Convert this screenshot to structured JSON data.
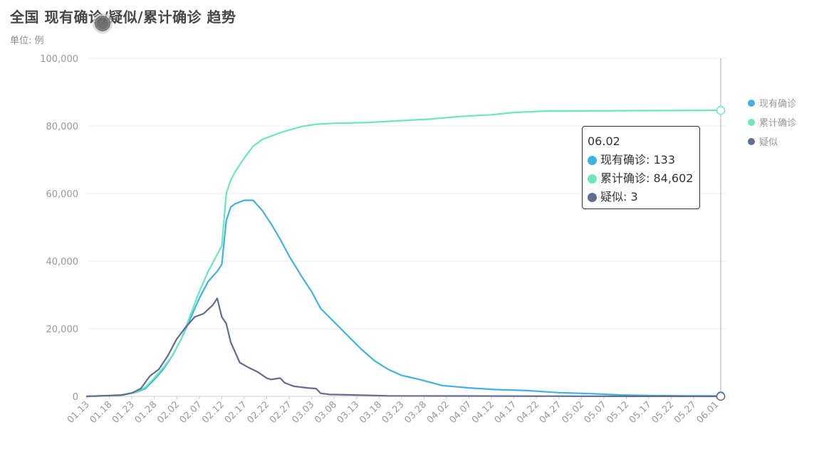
{
  "title": "全国 现有确诊/疑似/累计确诊 趋势",
  "subtitle": "单位: 例",
  "colors": {
    "current": "#3fb1e3",
    "cumulative": "#6be6c1",
    "suspected": "#626c91",
    "grid": "#eeeeee",
    "axis": "#999999"
  },
  "tooltip": {
    "date": "06.02",
    "rows": [
      {
        "label": "现有确诊: 133",
        "color": "#3fb1e3"
      },
      {
        "label": "累计确诊: 84,602",
        "color": "#6be6c1"
      },
      {
        "label": "疑似: 3",
        "color": "#626c91"
      }
    ]
  },
  "chart_data": {
    "type": "line",
    "title": "全国 现有确诊/疑似/累计确诊 趋势",
    "subtitle": "单位: 例",
    "categories": [
      "01.13",
      "01.18",
      "01.23",
      "01.28",
      "02.02",
      "02.07",
      "02.12",
      "02.17",
      "02.22",
      "02.27",
      "03.03",
      "03.08",
      "03.13",
      "03.18",
      "03.23",
      "03.28",
      "04.02",
      "04.07",
      "04.12",
      "04.17",
      "04.22",
      "04.27",
      "05.02",
      "05.07",
      "05.12",
      "05.17",
      "05.22",
      "05.27",
      "06.01"
    ],
    "x_start": "01.13",
    "x_end": "06.02",
    "ylim": [
      0,
      100000
    ],
    "yticks": [
      0,
      20000,
      40000,
      60000,
      80000,
      100000
    ],
    "ytick_labels": [
      "0",
      "20,000",
      "40,000",
      "60,000",
      "80,000",
      "100,000"
    ],
    "grid": true,
    "legend": "right",
    "series": [
      {
        "name": "现有确诊",
        "color": "#3fb1e3",
        "points": [
          [
            "01.13",
            0
          ],
          [
            "01.20",
            250
          ],
          [
            "01.24",
            1200
          ],
          [
            "01.26",
            2300
          ],
          [
            "01.28",
            5000
          ],
          [
            "01.30",
            8000
          ],
          [
            "02.01",
            12000
          ],
          [
            "02.03",
            17000
          ],
          [
            "02.05",
            23000
          ],
          [
            "02.07",
            29000
          ],
          [
            "02.09",
            34000
          ],
          [
            "02.11",
            37000
          ],
          [
            "02.12",
            39000
          ],
          [
            "02.13",
            52000
          ],
          [
            "02.14",
            56000
          ],
          [
            "02.15",
            57000
          ],
          [
            "02.17",
            58000
          ],
          [
            "02.19",
            58000
          ],
          [
            "02.21",
            55000
          ],
          [
            "02.23",
            51000
          ],
          [
            "02.25",
            46500
          ],
          [
            "02.27",
            41500
          ],
          [
            "03.01",
            35000
          ],
          [
            "03.03",
            31000
          ],
          [
            "03.05",
            26000
          ],
          [
            "03.08",
            22000
          ],
          [
            "03.11",
            18000
          ],
          [
            "03.14",
            14000
          ],
          [
            "03.17",
            10500
          ],
          [
            "03.20",
            8000
          ],
          [
            "03.23",
            6200
          ],
          [
            "03.27",
            5000
          ],
          [
            "04.01",
            3200
          ],
          [
            "04.07",
            2500
          ],
          [
            "04.13",
            2000
          ],
          [
            "04.20",
            1700
          ],
          [
            "04.27",
            1100
          ],
          [
            "05.04",
            800
          ],
          [
            "05.11",
            400
          ],
          [
            "05.18",
            200
          ],
          [
            "05.25",
            140
          ],
          [
            "06.02",
            133
          ]
        ]
      },
      {
        "name": "累计确诊",
        "color": "#6be6c1",
        "points": [
          [
            "01.13",
            0
          ],
          [
            "01.20",
            300
          ],
          [
            "01.24",
            1300
          ],
          [
            "01.26",
            2700
          ],
          [
            "01.28",
            5500
          ],
          [
            "01.30",
            8500
          ],
          [
            "02.01",
            12000
          ],
          [
            "02.03",
            17000
          ],
          [
            "02.05",
            24000
          ],
          [
            "02.07",
            31000
          ],
          [
            "02.09",
            37000
          ],
          [
            "02.11",
            42000
          ],
          [
            "02.12",
            44500
          ],
          [
            "02.13",
            60000
          ],
          [
            "02.14",
            64000
          ],
          [
            "02.15",
            66500
          ],
          [
            "02.17",
            70500
          ],
          [
            "02.19",
            74000
          ],
          [
            "02.21",
            76000
          ],
          [
            "02.23",
            77000
          ],
          [
            "02.25",
            78000
          ],
          [
            "02.27",
            78800
          ],
          [
            "03.01",
            79900
          ],
          [
            "03.04",
            80500
          ],
          [
            "03.08",
            80800
          ],
          [
            "03.15",
            81000
          ],
          [
            "03.22",
            81500
          ],
          [
            "03.29",
            82000
          ],
          [
            "04.05",
            82800
          ],
          [
            "04.12",
            83300
          ],
          [
            "04.17",
            84000
          ],
          [
            "04.24",
            84400
          ],
          [
            "05.01",
            84450
          ],
          [
            "05.10",
            84500
          ],
          [
            "05.20",
            84550
          ],
          [
            "06.02",
            84602
          ]
        ]
      },
      {
        "name": "疑似",
        "color": "#626c91",
        "points": [
          [
            "01.13",
            0
          ],
          [
            "01.21",
            400
          ],
          [
            "01.23",
            1000
          ],
          [
            "01.25",
            2300
          ],
          [
            "01.27",
            6000
          ],
          [
            "01.29",
            8000
          ],
          [
            "01.31",
            12000
          ],
          [
            "02.02",
            17000
          ],
          [
            "02.04",
            20500
          ],
          [
            "02.06",
            23500
          ],
          [
            "02.08",
            24500
          ],
          [
            "02.10",
            27000
          ],
          [
            "02.11",
            29000
          ],
          [
            "02.12",
            23500
          ],
          [
            "02.13",
            21500
          ],
          [
            "02.14",
            16000
          ],
          [
            "02.16",
            10000
          ],
          [
            "02.18",
            8500
          ],
          [
            "02.20",
            7200
          ],
          [
            "02.22",
            5400
          ],
          [
            "02.23",
            5000
          ],
          [
            "02.25",
            5400
          ],
          [
            "02.26",
            4000
          ],
          [
            "02.28",
            3000
          ],
          [
            "03.02",
            2500
          ],
          [
            "03.04",
            2300
          ],
          [
            "03.05",
            900
          ],
          [
            "03.07",
            550
          ],
          [
            "03.13",
            400
          ],
          [
            "03.20",
            140
          ],
          [
            "04.05",
            100
          ],
          [
            "05.01",
            50
          ],
          [
            "06.02",
            3
          ]
        ]
      }
    ]
  }
}
